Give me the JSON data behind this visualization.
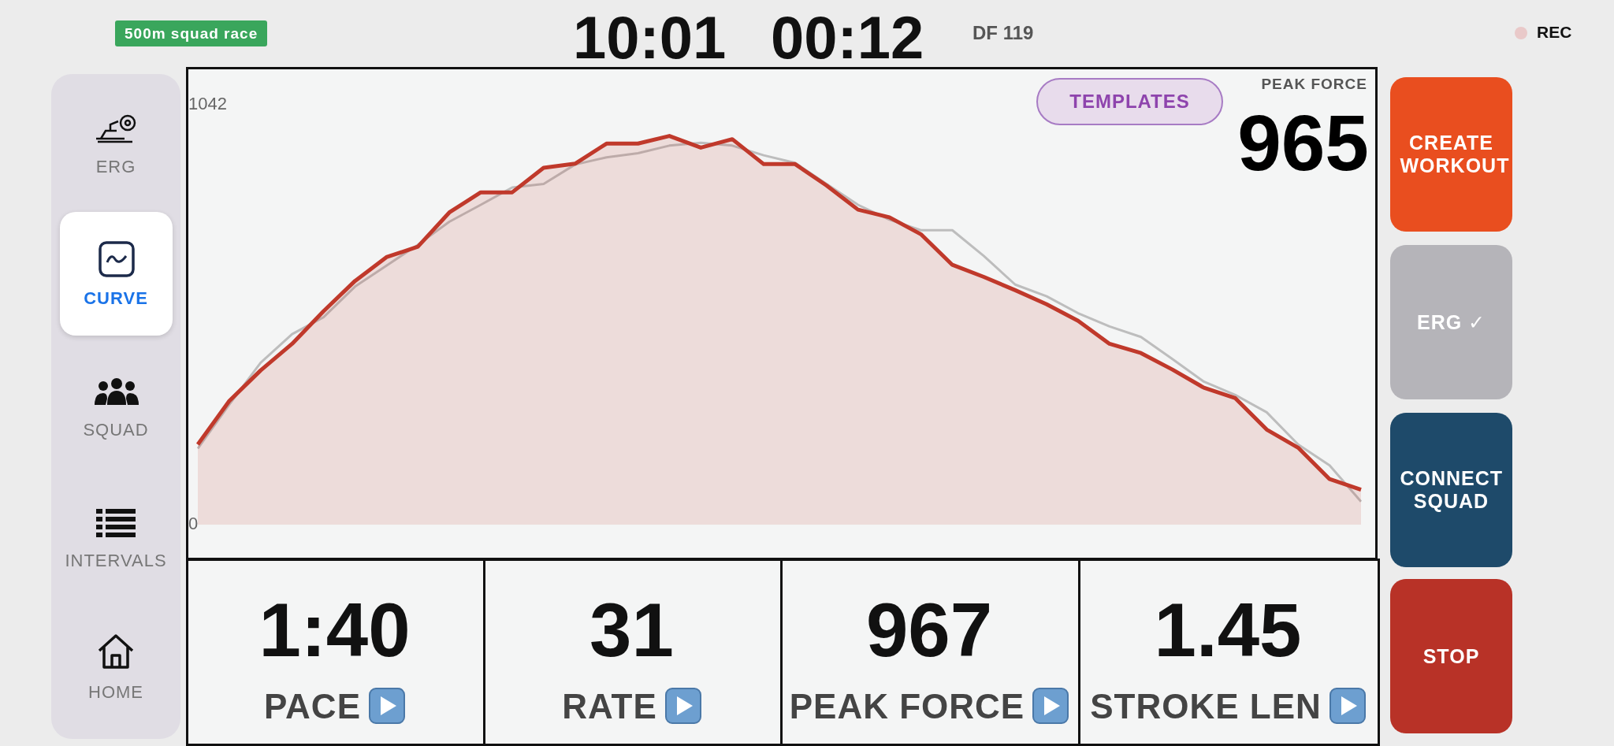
{
  "chart_data": [
    {
      "type": "line",
      "categories": [
        null,
        null,
        null,
        null,
        null,
        null,
        null,
        null,
        null,
        null,
        null,
        null,
        null,
        null,
        null,
        null,
        null,
        null,
        null,
        null,
        null,
        null,
        null,
        null,
        null,
        null,
        null,
        null,
        null,
        null,
        null,
        null,
        null,
        null,
        null,
        null,
        null,
        null
      ],
      "series": [
        {
          "type": "line",
          "color": "#bdbdbd",
          "values": [
            189,
            298,
            402,
            473,
            515,
            591,
            643,
            695,
            752,
            794,
            837,
            846,
            894,
            912,
            922,
            941,
            948,
            941,
            917,
            898,
            846,
            794,
            757,
            731,
            731,
            667,
            596,
            567,
            525,
            492,
            466,
            411,
            355,
            322,
            279,
            199,
            147,
            57
          ]
        },
        {
          "type": "area",
          "color": "#c0392b",
          "values": [
            199,
            307,
            383,
            449,
            530,
            605,
            664,
            690,
            775,
            825,
            825,
            886,
            896,
            946,
            946,
            965,
            936,
            957,
            895,
            895,
            842,
            782,
            763,
            721,
            645,
            615,
            582,
            547,
            506,
            449,
            426,
            385,
            340,
            314,
            236,
            191,
            113,
            87
          ]
        }
      ],
      "ylim": [
        0,
        1130
      ],
      "yticks": [
        0,
        1042
      ],
      "tick_labels": "y",
      "grid": false,
      "annotations": [
        "PEAK FORCE",
        "965"
      ]
    },
    {
      "type": "other",
      "annotations": [
        "500m squad race",
        "10:01",
        "00:12",
        "DF 119",
        "REC",
        "ERG",
        "CURVE",
        "SQUAD",
        "INTERVALS",
        "HOME",
        "TEMPLATES",
        "1:40",
        "PACE",
        "31",
        "RATE",
        "967",
        "PEAK FORCE",
        "1.45",
        "STROKE LEN",
        "CREATE WORKOUT",
        "ERG ✓",
        "CONNECT SQUAD",
        "STOP"
      ]
    }
  ]
}
